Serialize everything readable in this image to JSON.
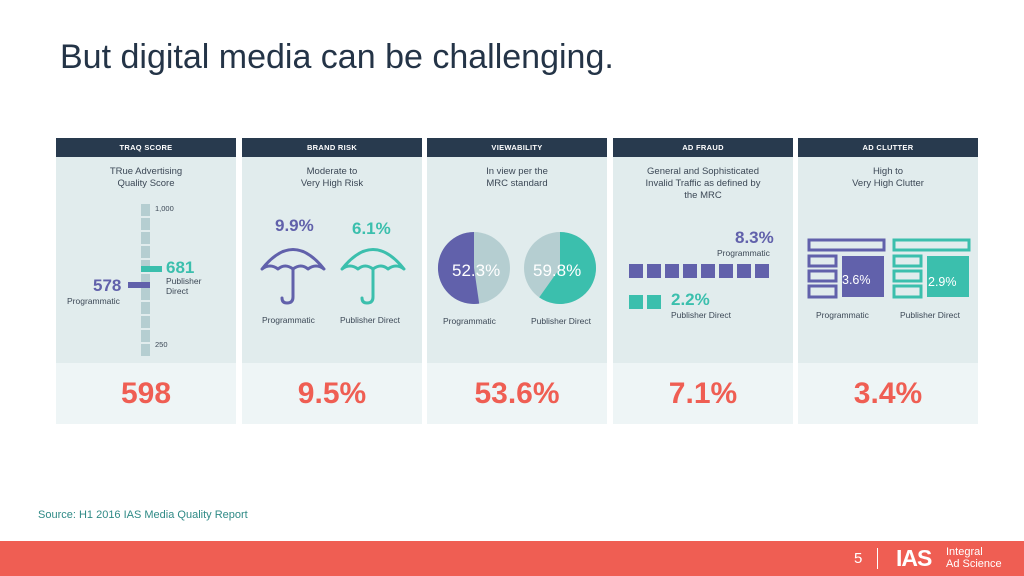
{
  "title": "But digital media can be challenging.",
  "colors": {
    "navy": "#283a4e",
    "purple": "#6161ab",
    "teal": "#3bbfad",
    "coral": "#ef5e53",
    "card_bg": "#e1eced"
  },
  "cards": [
    {
      "header": "TRAQ SCORE",
      "desc": [
        "TRue Advertising",
        "Quality Score"
      ],
      "scale_top": "1,000",
      "scale_bottom": "250",
      "prog_value": "578",
      "prog_label": "Programmatic",
      "pub_value": "681",
      "pub_label_1": "Publisher",
      "pub_label_2": "Direct",
      "overall": "598"
    },
    {
      "header": "BRAND RISK",
      "desc": [
        "Moderate to",
        "Very High Risk"
      ],
      "prog_value": "9.9%",
      "pub_value": "6.1%",
      "prog_label": "Programmatic",
      "pub_label": "Publisher Direct",
      "overall": "9.5%"
    },
    {
      "header": "VIEWABILITY",
      "desc": [
        "In view per the",
        "MRC standard"
      ],
      "prog_value": "52.3%",
      "pub_value": "59.8%",
      "prog_fraction": 0.523,
      "pub_fraction": 0.598,
      "prog_label": "Programmatic",
      "pub_label": "Publisher Direct",
      "overall": "53.6%"
    },
    {
      "header": "AD FRAUD",
      "desc": [
        "General and Sophisticated",
        "Invalid Traffic as defined by",
        "the MRC"
      ],
      "prog_value": "8.3%",
      "prog_label": "Programmatic",
      "pub_value": "2.2%",
      "pub_label": "Publisher Direct",
      "overall": "7.1%"
    },
    {
      "header": "AD CLUTTER",
      "desc": [
        "High to",
        "Very High Clutter"
      ],
      "prog_value": "3.6%",
      "pub_value": "2.9%",
      "prog_label": "Programmatic",
      "pub_label": "Publisher Direct",
      "overall": "3.4%"
    }
  ],
  "source": "Source: H1 2016 IAS Media Quality Report",
  "page_number": "5",
  "logo": {
    "mark": "IAS",
    "line1": "Integral",
    "line2": "Ad Science"
  }
}
